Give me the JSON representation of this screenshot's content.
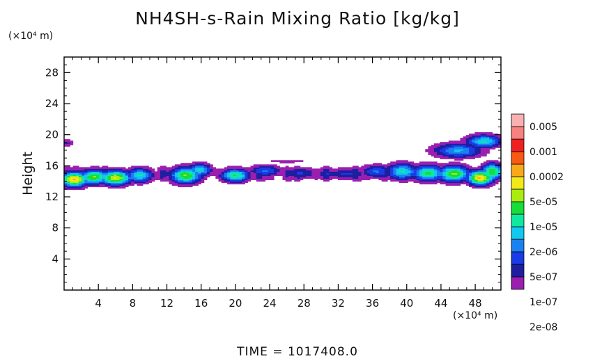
{
  "chart_data": {
    "type": "heatmap",
    "title": "NH4SH-s-Rain Mixing Ratio [kg/kg]",
    "ylabel": "Height",
    "x_unit": "(×10⁴ m)",
    "y_unit": "(×10⁴ m)",
    "xlim": [
      0,
      51
    ],
    "ylim": [
      0,
      30
    ],
    "x_ticks": [
      4,
      8,
      12,
      16,
      20,
      24,
      28,
      32,
      36,
      40,
      44,
      48
    ],
    "y_ticks": [
      4,
      8,
      12,
      16,
      20,
      24,
      28
    ],
    "colorbar": {
      "labels": [
        "0.005",
        "0.001",
        "0.0002",
        "5e-05",
        "1e-05",
        "2e-06",
        "5e-07",
        "1e-07",
        "2e-08"
      ],
      "colors": [
        "#9a1fb0",
        "#1e1ea0",
        "#1a3ce6",
        "#1a82f0",
        "#12c8ee",
        "#10e8a0",
        "#18dc3a",
        "#aaec10",
        "#f2e81a",
        "#f8a818",
        "#f85a14",
        "#ee2020",
        "#f88080",
        "#f8b0b0"
      ]
    },
    "footer": "TIME = 1017408.0"
  }
}
